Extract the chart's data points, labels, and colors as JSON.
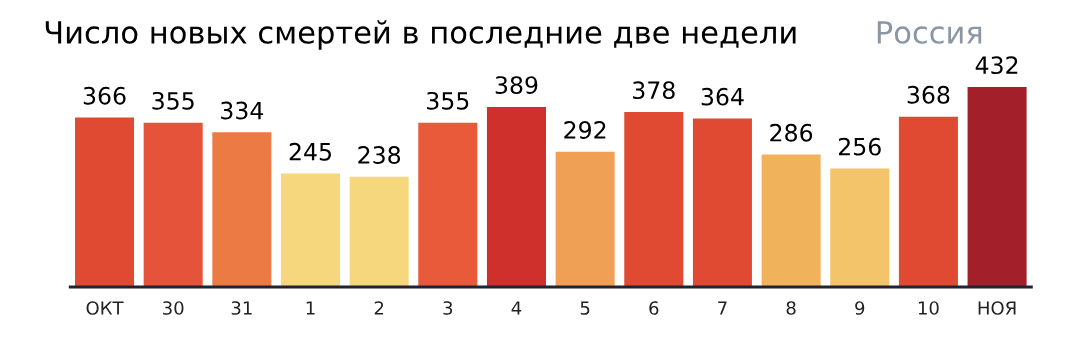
{
  "chart_data": {
    "type": "bar",
    "title": "Число новых смертей в последние две недели",
    "subtitle": "Россия",
    "categories": [
      "ОКТ",
      "30",
      "31",
      "1",
      "2",
      "3",
      "4",
      "5",
      "6",
      "7",
      "8",
      "9",
      "10",
      "НОЯ"
    ],
    "values": [
      366,
      355,
      334,
      245,
      238,
      355,
      389,
      292,
      378,
      364,
      286,
      256,
      368,
      432
    ],
    "colors": [
      "#e04a33",
      "#e5533a",
      "#ec7a45",
      "#f6d77e",
      "#f6d77e",
      "#e85a3a",
      "#d0302b",
      "#f0a055",
      "#e04a33",
      "#e04a33",
      "#f0b25a",
      "#f4c46a",
      "#e04a33",
      "#a31f2a"
    ],
    "data_labels": true,
    "grid": false,
    "legend": false
  }
}
